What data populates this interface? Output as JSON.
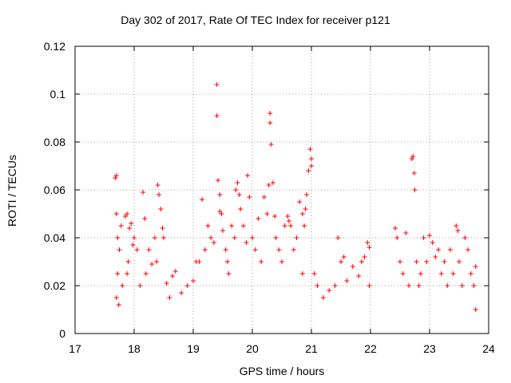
{
  "chart_data": {
    "type": "scatter",
    "title": "Day 302 of 2017, Rate Of TEC Index for receiver p121",
    "xlabel": "GPS time / hours",
    "ylabel": "ROTI / TECUs",
    "xlim": [
      17,
      24
    ],
    "ylim": [
      0,
      0.12
    ],
    "xticks": [
      "17",
      "18",
      "19",
      "20",
      "21",
      "22",
      "23",
      "24"
    ],
    "yticks": [
      "0",
      "0.02",
      "0.04",
      "0.06",
      "0.08",
      "0.1",
      "0.12"
    ],
    "grid": true,
    "marker": "+",
    "color": "#ff0000",
    "series": [
      {
        "points": [
          [
            17.68,
            0.065
          ],
          [
            17.7,
            0.066
          ],
          [
            17.7,
            0.05
          ],
          [
            17.72,
            0.04
          ],
          [
            17.75,
            0.035
          ],
          [
            17.78,
            0.045
          ],
          [
            17.72,
            0.025
          ],
          [
            17.7,
            0.015
          ],
          [
            17.74,
            0.012
          ],
          [
            17.8,
            0.02
          ],
          [
            17.85,
            0.049
          ],
          [
            17.88,
            0.05
          ],
          [
            17.92,
            0.044
          ],
          [
            17.95,
            0.046
          ],
          [
            17.98,
            0.037
          ],
          [
            17.9,
            0.03
          ],
          [
            17.88,
            0.025
          ],
          [
            18.0,
            0.04
          ],
          [
            18.05,
            0.035
          ],
          [
            18.1,
            0.02
          ],
          [
            18.15,
            0.059
          ],
          [
            18.18,
            0.048
          ],
          [
            18.2,
            0.025
          ],
          [
            18.25,
            0.035
          ],
          [
            18.3,
            0.029
          ],
          [
            18.35,
            0.04
          ],
          [
            18.38,
            0.03
          ],
          [
            18.4,
            0.062
          ],
          [
            18.42,
            0.058
          ],
          [
            18.45,
            0.052
          ],
          [
            18.48,
            0.044
          ],
          [
            18.5,
            0.04
          ],
          [
            18.55,
            0.021
          ],
          [
            18.6,
            0.015
          ],
          [
            18.65,
            0.024
          ],
          [
            18.7,
            0.026
          ],
          [
            18.8,
            0.017
          ],
          [
            18.9,
            0.02
          ],
          [
            19.0,
            0.022
          ],
          [
            19.05,
            0.03
          ],
          [
            19.1,
            0.03
          ],
          [
            19.15,
            0.056
          ],
          [
            19.2,
            0.035
          ],
          [
            19.25,
            0.045
          ],
          [
            19.3,
            0.04
          ],
          [
            19.35,
            0.038
          ],
          [
            19.4,
            0.104
          ],
          [
            19.4,
            0.091
          ],
          [
            19.42,
            0.064
          ],
          [
            19.45,
            0.058
          ],
          [
            19.45,
            0.051
          ],
          [
            19.48,
            0.05
          ],
          [
            19.5,
            0.043
          ],
          [
            19.55,
            0.035
          ],
          [
            19.58,
            0.03
          ],
          [
            19.6,
            0.025
          ],
          [
            19.65,
            0.045
          ],
          [
            19.7,
            0.04
          ],
          [
            19.72,
            0.06
          ],
          [
            19.75,
            0.063
          ],
          [
            19.78,
            0.058
          ],
          [
            19.8,
            0.052
          ],
          [
            19.85,
            0.045
          ],
          [
            19.9,
            0.038
          ],
          [
            19.92,
            0.066
          ],
          [
            19.95,
            0.057
          ],
          [
            20.0,
            0.04
          ],
          [
            20.05,
            0.035
          ],
          [
            20.1,
            0.048
          ],
          [
            20.15,
            0.03
          ],
          [
            20.2,
            0.057
          ],
          [
            20.25,
            0.05
          ],
          [
            20.28,
            0.062
          ],
          [
            20.3,
            0.092
          ],
          [
            20.3,
            0.088
          ],
          [
            20.32,
            0.079
          ],
          [
            20.35,
            0.063
          ],
          [
            20.38,
            0.049
          ],
          [
            20.4,
            0.04
          ],
          [
            20.45,
            0.035
          ],
          [
            20.5,
            0.03
          ],
          [
            20.55,
            0.045
          ],
          [
            20.6,
            0.049
          ],
          [
            20.62,
            0.047
          ],
          [
            20.65,
            0.045
          ],
          [
            20.7,
            0.035
          ],
          [
            20.75,
            0.04
          ],
          [
            20.8,
            0.055
          ],
          [
            20.85,
            0.05
          ],
          [
            20.9,
            0.052
          ],
          [
            20.95,
            0.068
          ],
          [
            20.98,
            0.077
          ],
          [
            21.0,
            0.073
          ],
          [
            21.0,
            0.07
          ],
          [
            20.92,
            0.058
          ],
          [
            20.88,
            0.045
          ],
          [
            20.85,
            0.025
          ],
          [
            21.05,
            0.025
          ],
          [
            21.1,
            0.02
          ],
          [
            21.2,
            0.015
          ],
          [
            21.3,
            0.018
          ],
          [
            21.4,
            0.02
          ],
          [
            21.45,
            0.04
          ],
          [
            21.5,
            0.03
          ],
          [
            21.55,
            0.032
          ],
          [
            21.6,
            0.022
          ],
          [
            21.7,
            0.028
          ],
          [
            21.8,
            0.024
          ],
          [
            21.85,
            0.03
          ],
          [
            21.9,
            0.032
          ],
          [
            21.95,
            0.038
          ],
          [
            21.98,
            0.036
          ],
          [
            21.98,
            0.02
          ],
          [
            22.42,
            0.044
          ],
          [
            22.45,
            0.04
          ],
          [
            22.5,
            0.03
          ],
          [
            22.55,
            0.025
          ],
          [
            22.6,
            0.042
          ],
          [
            22.65,
            0.02
          ],
          [
            22.7,
            0.073
          ],
          [
            22.72,
            0.074
          ],
          [
            22.74,
            0.067
          ],
          [
            22.75,
            0.06
          ],
          [
            22.78,
            0.03
          ],
          [
            22.82,
            0.02
          ],
          [
            22.85,
            0.025
          ],
          [
            22.9,
            0.04
          ],
          [
            22.95,
            0.03
          ],
          [
            23.0,
            0.041
          ],
          [
            23.05,
            0.038
          ],
          [
            23.1,
            0.032
          ],
          [
            23.15,
            0.035
          ],
          [
            23.2,
            0.025
          ],
          [
            23.25,
            0.03
          ],
          [
            23.3,
            0.02
          ],
          [
            23.35,
            0.035
          ],
          [
            23.4,
            0.025
          ],
          [
            23.45,
            0.045
          ],
          [
            23.48,
            0.043
          ],
          [
            23.5,
            0.03
          ],
          [
            23.55,
            0.02
          ],
          [
            23.6,
            0.04
          ],
          [
            23.65,
            0.035
          ],
          [
            23.7,
            0.025
          ],
          [
            23.75,
            0.02
          ],
          [
            23.78,
            0.028
          ],
          [
            23.78,
            0.01
          ]
        ]
      }
    ]
  }
}
